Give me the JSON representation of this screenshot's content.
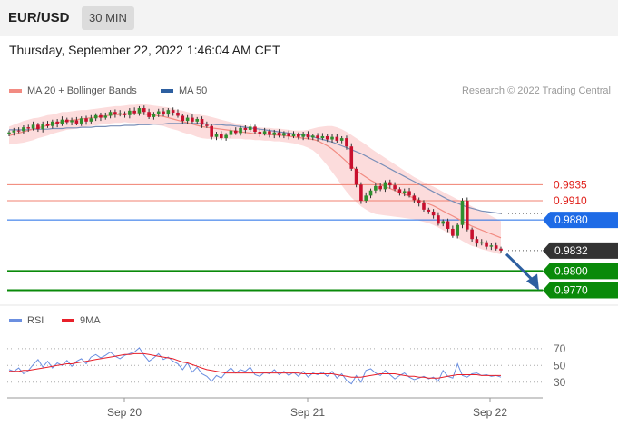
{
  "header": {
    "symbol": "EUR/USD",
    "timeframe": "30 MIN",
    "datetime": "Thursday, September 22, 2022 1:46:04 AM CET"
  },
  "legend": {
    "items": [
      {
        "label": "MA 20 + Bollinger Bands",
        "color": "#f28b82"
      },
      {
        "label": "MA 50",
        "color": "#2d5fa0"
      }
    ],
    "credit": "Research © 2022 Trading Central"
  },
  "rsi_legend": {
    "items": [
      {
        "label": "RSI",
        "color": "#6b8fe0"
      },
      {
        "label": "9MA",
        "color": "#e8202a"
      }
    ]
  },
  "colors": {
    "resistance": "#f08070",
    "pivot": "#1e6be6",
    "support": "#0a8a0a",
    "last": "#333333",
    "up_candle": "#2f8f2f",
    "down_candle": "#c8102e",
    "band_fill": "#fcdcdc",
    "ma20": "#f28b82",
    "ma50": "#7a8fb8",
    "arrow": "#2d5fa0"
  },
  "chart_data": [
    {
      "type": "candlestick",
      "title": "EUR/USD",
      "ylim": [
        0.9755,
        1.0065
      ],
      "x_ticks": [
        "Sep 20",
        "Sep 21",
        "Sep 22"
      ],
      "levels": [
        {
          "label": "0.9935",
          "value": 0.9935,
          "kind": "resistance"
        },
        {
          "label": "0.9910",
          "value": 0.991,
          "kind": "resistance"
        },
        {
          "label": "0.9880",
          "value": 0.988,
          "kind": "pivot"
        },
        {
          "label": "0.9832",
          "value": 0.9832,
          "kind": "last"
        },
        {
          "label": "0.9800",
          "value": 0.98,
          "kind": "support"
        },
        {
          "label": "0.9770",
          "value": 0.977,
          "kind": "support"
        }
      ],
      "close": [
        1.0017,
        1.002,
        1.0019,
        1.0025,
        1.0023,
        1.0029,
        1.0022,
        1.003,
        1.0027,
        1.0034,
        1.003,
        1.0037,
        1.0033,
        1.0036,
        1.0031,
        1.0039,
        1.0034,
        1.0039,
        1.0044,
        1.004,
        1.0043,
        1.0049,
        1.0045,
        1.0047,
        1.0044,
        1.0051,
        1.0047,
        1.0055,
        1.0049,
        1.0041,
        1.0046,
        1.005,
        1.0045,
        1.0052,
        1.0048,
        1.0043,
        1.0035,
        1.004,
        1.0034,
        1.0038,
        1.0029,
        1.0027,
        1.001,
        1.0014,
        1.0008,
        1.0013,
        1.002,
        1.0016,
        1.0024,
        1.0021,
        1.0026,
        1.0018,
        1.0015,
        1.0019,
        1.0013,
        1.0017,
        1.0012,
        1.0016,
        1.0011,
        1.0014,
        1.001,
        1.0014,
        1.0009,
        1.0012,
        1.0008,
        1.0011,
        1.0006,
        1.001,
        1.0004,
        1.0008,
        0.9995,
        0.996,
        0.9935,
        0.991,
        0.9918,
        0.9926,
        0.9933,
        0.9928,
        0.9939,
        0.9934,
        0.9928,
        0.9922,
        0.9925,
        0.9918,
        0.9911,
        0.9906,
        0.9896,
        0.9893,
        0.9887,
        0.9874,
        0.9878,
        0.9866,
        0.9855,
        0.9872,
        0.991,
        0.9865,
        0.985,
        0.9843,
        0.9845,
        0.9838,
        0.984,
        0.9835,
        0.9832
      ],
      "ma20": [
        1.0012,
        1.0014,
        1.0016,
        1.0018,
        1.002,
        1.0022,
        1.0024,
        1.0026,
        1.0028,
        1.003,
        1.0032,
        1.0034,
        1.0035,
        1.0036,
        1.0037,
        1.0038,
        1.0039,
        1.004,
        1.0041,
        1.0042,
        1.0043,
        1.0044,
        1.0045,
        1.0045,
        1.0046,
        1.0046,
        1.0046,
        1.0046,
        1.0046,
        1.0045,
        1.0044,
        1.0043,
        1.0042,
        1.004,
        1.0038,
        1.0036,
        1.0034,
        1.0032,
        1.003,
        1.0028,
        1.0026,
        1.0025,
        1.0024,
        1.0023,
        1.0022,
        1.0021,
        1.002,
        1.0019,
        1.0018,
        1.0017,
        1.0016,
        1.0015,
        1.0015,
        1.0014,
        1.0014,
        1.0013,
        1.0013,
        1.0012,
        1.0011,
        1.001,
        1.0009,
        1.0008,
        1.0007,
        1.0006,
        1.0004,
        1.0,
        0.9996,
        0.9991,
        0.9985,
        0.9978,
        0.9971,
        0.9964,
        0.9958,
        0.9952,
        0.9947,
        0.9942,
        0.9938,
        0.9935,
        0.9932,
        0.9929,
        0.9926,
        0.9923,
        0.992,
        0.9917,
        0.9914,
        0.9911,
        0.9908,
        0.9905,
        0.9902,
        0.9898,
        0.9894,
        0.989,
        0.9886,
        0.9882,
        0.9878,
        0.9874,
        0.987,
        0.9867,
        0.9864,
        0.9861,
        0.9858,
        0.9855,
        0.9852
      ],
      "band_width": [
        0.0014,
        0.0015,
        0.0016,
        0.0017,
        0.0017,
        0.0017,
        0.0016,
        0.0016,
        0.0016,
        0.0015,
        0.0015,
        0.0015,
        0.0014,
        0.0014,
        0.0014,
        0.0014,
        0.0013,
        0.0013,
        0.0013,
        0.0013,
        0.0013,
        0.0013,
        0.0013,
        0.0013,
        0.0013,
        0.0014,
        0.0014,
        0.0015,
        0.0015,
        0.0015,
        0.0015,
        0.0015,
        0.0015,
        0.0016,
        0.0016,
        0.0016,
        0.0017,
        0.0017,
        0.0017,
        0.0018,
        0.0018,
        0.0018,
        0.0017,
        0.0016,
        0.0015,
        0.0014,
        0.0013,
        0.0012,
        0.0011,
        0.0011,
        0.001,
        0.001,
        0.001,
        0.001,
        0.001,
        0.001,
        0.001,
        0.001,
        0.001,
        0.001,
        0.0011,
        0.0012,
        0.0014,
        0.0017,
        0.0021,
        0.0026,
        0.0031,
        0.0036,
        0.004,
        0.0044,
        0.0047,
        0.0049,
        0.005,
        0.0051,
        0.0051,
        0.005,
        0.0049,
        0.0047,
        0.0045,
        0.0043,
        0.0041,
        0.0039,
        0.0037,
        0.0035,
        0.0033,
        0.0032,
        0.0031,
        0.003,
        0.003,
        0.003,
        0.003,
        0.003,
        0.003,
        0.003,
        0.0031,
        0.0031,
        0.0031,
        0.003,
        0.003,
        0.0029,
        0.0028,
        0.0027,
        0.0026
      ],
      "ma50": [
        1.0021,
        1.0021,
        1.0021,
        1.0021,
        1.0021,
        1.0022,
        1.0022,
        1.0022,
        1.0022,
        1.0023,
        1.0023,
        1.0023,
        1.0024,
        1.0024,
        1.0024,
        1.0025,
        1.0025,
        1.0025,
        1.0026,
        1.0026,
        1.0026,
        1.0027,
        1.0027,
        1.0027,
        1.0028,
        1.0028,
        1.0028,
        1.0029,
        1.0029,
        1.0029,
        1.003,
        1.003,
        1.003,
        1.0031,
        1.0031,
        1.0031,
        1.0031,
        1.0031,
        1.0031,
        1.0031,
        1.0031,
        1.003,
        1.003,
        1.0029,
        1.0029,
        1.0028,
        1.0028,
        1.0027,
        1.0026,
        1.0025,
        1.0024,
        1.0023,
        1.0022,
        1.0021,
        1.002,
        1.0019,
        1.0018,
        1.0017,
        1.0016,
        1.0015,
        1.0014,
        1.0013,
        1.0012,
        1.001,
        1.0008,
        1.0006,
        1.0004,
        1.0002,
        0.9999,
        0.9996,
        0.9993,
        0.999,
        0.9987,
        0.9984,
        0.998,
        0.9976,
        0.9972,
        0.9968,
        0.9964,
        0.996,
        0.9956,
        0.9952,
        0.9948,
        0.9944,
        0.994,
        0.9936,
        0.9932,
        0.9928,
        0.9924,
        0.992,
        0.9916,
        0.9912,
        0.9909,
        0.9906,
        0.9903,
        0.99,
        0.9898,
        0.9896,
        0.9894,
        0.9893,
        0.9892,
        0.9891,
        0.989
      ]
    },
    {
      "type": "line",
      "title": "RSI",
      "ylim": [
        20,
        85
      ],
      "y_ticks": [
        70,
        50,
        30
      ],
      "series": [
        {
          "name": "RSI",
          "values": [
            45,
            43,
            47,
            40,
            44,
            51,
            57,
            48,
            55,
            47,
            53,
            50,
            56,
            49,
            55,
            58,
            52,
            60,
            63,
            59,
            62,
            66,
            61,
            58,
            62,
            64,
            66,
            71,
            62,
            55,
            59,
            64,
            57,
            60,
            55,
            52,
            45,
            53,
            42,
            48,
            40,
            37,
            31,
            38,
            35,
            42,
            47,
            41,
            45,
            43,
            48,
            39,
            37,
            42,
            40,
            45,
            39,
            43,
            38,
            42,
            37,
            43,
            36,
            41,
            39,
            42,
            37,
            43,
            35,
            40,
            32,
            28,
            38,
            30,
            44,
            46,
            41,
            38,
            44,
            39,
            34,
            38,
            41,
            36,
            33,
            35,
            37,
            34,
            36,
            31,
            44,
            37,
            35,
            52,
            38,
            36,
            40,
            41,
            38,
            39,
            37,
            38,
            36
          ]
        },
        {
          "name": "9MA",
          "values": [
            43,
            43,
            43,
            44,
            44,
            45,
            46,
            47,
            48,
            49,
            50,
            51,
            52,
            52,
            53,
            54,
            55,
            56,
            57,
            58,
            59,
            60,
            61,
            62,
            63,
            63,
            64,
            64,
            64,
            63,
            62,
            61,
            60,
            59,
            58,
            56,
            54,
            53,
            51,
            49,
            47,
            45,
            44,
            43,
            42,
            41,
            41,
            41,
            41,
            41,
            41,
            41,
            41,
            41,
            41,
            41,
            41,
            41,
            41,
            41,
            41,
            40,
            40,
            40,
            40,
            40,
            40,
            40,
            39,
            38,
            37,
            36,
            36,
            36,
            37,
            38,
            39,
            40,
            40,
            40,
            40,
            39,
            38,
            37,
            37,
            36,
            36,
            35,
            35,
            35,
            36,
            37,
            38,
            39,
            39,
            39,
            39,
            39,
            38,
            38,
            38,
            38,
            38
          ]
        }
      ]
    }
  ]
}
